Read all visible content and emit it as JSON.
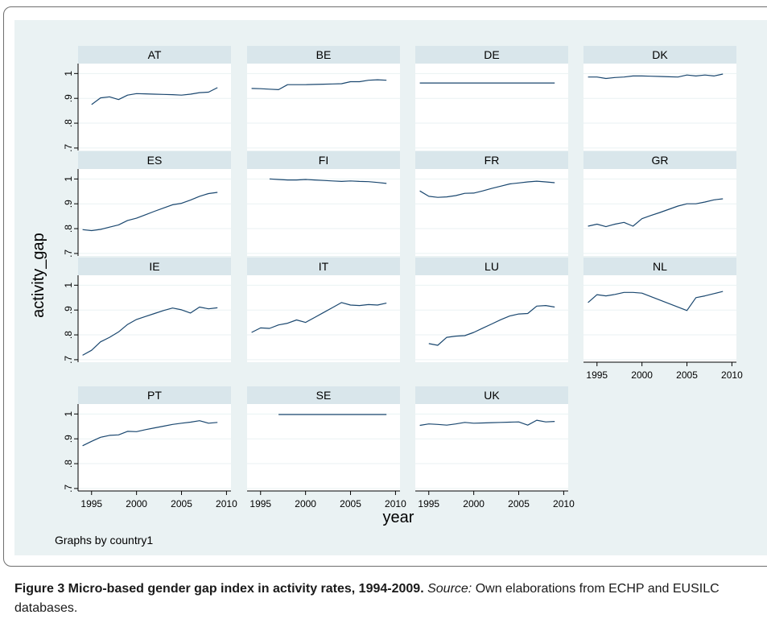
{
  "colors": {
    "outer_background": "#eaf2f3",
    "plot_background": "#ffffff",
    "strip_background": "#d9e6eb",
    "grid": "#eaf2f3",
    "line": "#1a476f",
    "axis": "#000000",
    "text": "#000000"
  },
  "caption": {
    "label": "Figure 3 Micro-based gender gap index in activity rates, 1994-2009.",
    "source_label": "Source:",
    "source_text": "Own elaborations from ECHP and EUSILC databases."
  },
  "chart_data": {
    "type": "line",
    "layout": "small-multiples",
    "ylabel": "activity_gap",
    "xlabel": "year",
    "note": "Graphs by country1",
    "xlim": [
      1993.5,
      2010.5
    ],
    "ylim": [
      0.69,
      1.04
    ],
    "xticks": [
      1995,
      2000,
      2005,
      2010
    ],
    "yticks": [
      0.7,
      0.8,
      0.9,
      1
    ],
    "ytick_labels": [
      ".7",
      ".8",
      ".9",
      "1"
    ],
    "grid": true,
    "panels": [
      {
        "name": "AT",
        "x": [
          1995,
          1996,
          1997,
          1998,
          1999,
          2000,
          2001,
          2002,
          2003,
          2004,
          2005,
          2006,
          2007,
          2008,
          2009
        ],
        "y": [
          0.875,
          0.902,
          0.906,
          0.895,
          0.913,
          0.919,
          0.918,
          0.917,
          0.916,
          0.915,
          0.913,
          0.917,
          0.923,
          0.925,
          0.943
        ]
      },
      {
        "name": "BE",
        "x": [
          1994,
          1995,
          1996,
          1997,
          1998,
          1999,
          2000,
          2001,
          2002,
          2003,
          2004,
          2005,
          2006,
          2007,
          2008,
          2009
        ],
        "y": [
          0.94,
          0.939,
          0.937,
          0.935,
          0.955,
          0.955,
          0.955,
          0.956,
          0.957,
          0.958,
          0.959,
          0.967,
          0.967,
          0.973,
          0.975,
          0.973
        ]
      },
      {
        "name": "DE",
        "x": [
          1994,
          2009
        ],
        "y": [
          0.962,
          0.962
        ]
      },
      {
        "name": "DK",
        "x": [
          1994,
          1995,
          1996,
          1997,
          1998,
          1999,
          2000,
          2001,
          2002,
          2003,
          2004,
          2005,
          2006,
          2007,
          2008,
          2009
        ],
        "y": [
          0.986,
          0.986,
          0.98,
          0.984,
          0.986,
          0.99,
          0.99,
          0.989,
          0.988,
          0.987,
          0.986,
          0.994,
          0.99,
          0.994,
          0.99,
          0.998
        ]
      },
      {
        "name": "ES",
        "x": [
          1994,
          1995,
          1996,
          1997,
          1998,
          1999,
          2000,
          2001,
          2002,
          2003,
          2004,
          2005,
          2006,
          2007,
          2008,
          2009
        ],
        "y": [
          0.796,
          0.792,
          0.797,
          0.806,
          0.815,
          0.833,
          0.842,
          0.856,
          0.87,
          0.883,
          0.896,
          0.902,
          0.915,
          0.93,
          0.941,
          0.946
        ]
      },
      {
        "name": "FI",
        "x": [
          1996,
          1997,
          1998,
          1999,
          2000,
          2001,
          2002,
          2003,
          2004,
          2005,
          2006,
          2007,
          2008,
          2009
        ],
        "y": [
          1.0,
          0.998,
          0.996,
          0.996,
          0.998,
          0.996,
          0.994,
          0.992,
          0.99,
          0.992,
          0.99,
          0.989,
          0.986,
          0.982
        ]
      },
      {
        "name": "FR",
        "x": [
          1994,
          1995,
          1996,
          1997,
          1998,
          1999,
          2000,
          2001,
          2002,
          2003,
          2004,
          2005,
          2006,
          2007,
          2008,
          2009
        ],
        "y": [
          0.952,
          0.93,
          0.926,
          0.928,
          0.933,
          0.942,
          0.943,
          0.952,
          0.962,
          0.971,
          0.98,
          0.984,
          0.988,
          0.991,
          0.988,
          0.985
        ]
      },
      {
        "name": "GR",
        "x": [
          1994,
          1995,
          1996,
          1997,
          1998,
          1999,
          2000,
          2001,
          2002,
          2003,
          2004,
          2005,
          2006,
          2007,
          2008,
          2009
        ],
        "y": [
          0.81,
          0.818,
          0.808,
          0.818,
          0.825,
          0.81,
          0.84,
          0.853,
          0.865,
          0.878,
          0.891,
          0.9,
          0.9,
          0.907,
          0.916,
          0.92
        ]
      },
      {
        "name": "IE",
        "x": [
          1994,
          1995,
          1996,
          1997,
          1998,
          1999,
          2000,
          2001,
          2002,
          2003,
          2004,
          2005,
          2006,
          2007,
          2008,
          2009
        ],
        "y": [
          0.718,
          0.738,
          0.772,
          0.79,
          0.812,
          0.842,
          0.862,
          0.874,
          0.886,
          0.898,
          0.908,
          0.901,
          0.888,
          0.912,
          0.905,
          0.909
        ]
      },
      {
        "name": "IT",
        "x": [
          1994,
          1995,
          1996,
          1997,
          1998,
          1999,
          2000,
          2001,
          2002,
          2003,
          2004,
          2005,
          2006,
          2007,
          2008,
          2009
        ],
        "y": [
          0.81,
          0.828,
          0.826,
          0.84,
          0.847,
          0.86,
          0.85,
          0.87,
          0.89,
          0.91,
          0.93,
          0.92,
          0.918,
          0.922,
          0.92,
          0.928
        ]
      },
      {
        "name": "LU",
        "x": [
          1995,
          1996,
          1997,
          1998,
          1999,
          2000,
          2001,
          2002,
          2003,
          2004,
          2005,
          2006,
          2007,
          2008,
          2009
        ],
        "y": [
          0.765,
          0.758,
          0.79,
          0.795,
          0.797,
          0.81,
          0.827,
          0.844,
          0.861,
          0.876,
          0.884,
          0.886,
          0.916,
          0.918,
          0.912
        ]
      },
      {
        "name": "NL",
        "x": [
          1994,
          1995,
          1996,
          1997,
          1998,
          1999,
          2000,
          2005,
          2006,
          2007,
          2008,
          2009
        ],
        "y": [
          0.93,
          0.962,
          0.957,
          0.963,
          0.971,
          0.971,
          0.968,
          0.898,
          0.95,
          0.957,
          0.966,
          0.975
        ]
      },
      {
        "name": "PT",
        "x": [
          1994,
          1995,
          1996,
          1997,
          1998,
          1999,
          2000,
          2001,
          2002,
          2003,
          2004,
          2005,
          2006,
          2007,
          2008,
          2009
        ],
        "y": [
          0.872,
          0.89,
          0.906,
          0.914,
          0.916,
          0.93,
          0.929,
          0.937,
          0.944,
          0.951,
          0.958,
          0.963,
          0.967,
          0.973,
          0.963,
          0.966
        ]
      },
      {
        "name": "SE",
        "x": [
          1997,
          2009
        ],
        "y": [
          0.998,
          0.998
        ]
      },
      {
        "name": "UK",
        "x": [
          1994,
          1995,
          1996,
          1997,
          1998,
          1999,
          2000,
          2001,
          2002,
          2003,
          2004,
          2005,
          2006,
          2007,
          2008,
          2009
        ],
        "y": [
          0.954,
          0.96,
          0.958,
          0.955,
          0.96,
          0.966,
          0.963,
          0.964,
          0.965,
          0.966,
          0.967,
          0.968,
          0.955,
          0.975,
          0.968,
          0.97
        ]
      }
    ]
  }
}
